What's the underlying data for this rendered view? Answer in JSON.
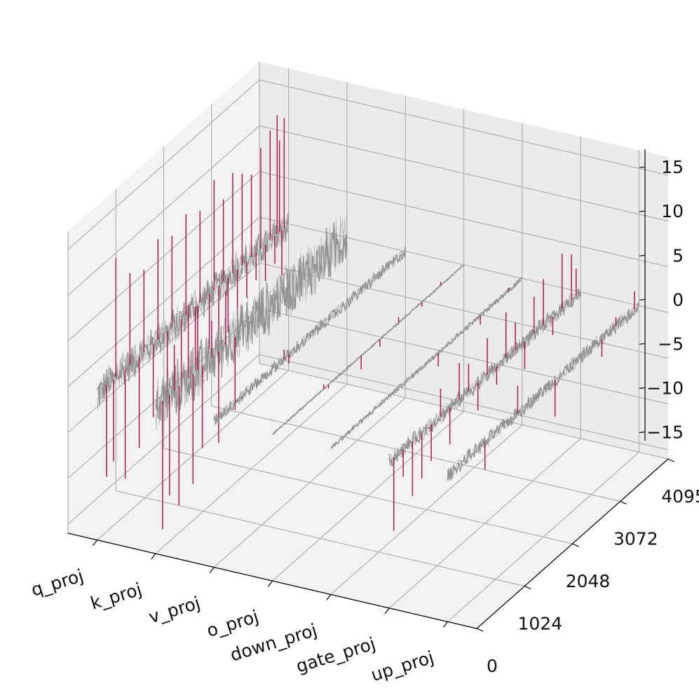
{
  "chart_data": {
    "type": "3d-line-spikes",
    "title": "",
    "xlabel": "",
    "ylabel": "",
    "zlabel": "",
    "categories": [
      "q_proj",
      "k_proj",
      "v_proj",
      "o_proj",
      "down_proj",
      "gate_proj",
      "up_proj"
    ],
    "y_ticks": [
      0,
      1024,
      2048,
      3072,
      4095
    ],
    "z_ticks": [
      15,
      10,
      5,
      0,
      -5,
      -10,
      -15
    ],
    "z_tick_labels": [
      "15",
      "10",
      "5",
      "0",
      "−5",
      "−10",
      "−15"
    ],
    "ylim": [
      0,
      4095
    ],
    "zlim": [
      -16,
      17
    ],
    "grid": true,
    "colors": {
      "baseline": "#8c8c8c",
      "outlier": "#b0194a",
      "grid": "#b0b0b0",
      "pane": "#f2f2f2"
    },
    "series": [
      {
        "category": "q_proj",
        "spread": 2.2,
        "outliers": [
          [
            200,
            -10
          ],
          [
            350,
            -9
          ],
          [
            600,
            -12
          ],
          [
            900,
            -10
          ],
          [
            1200,
            -8
          ],
          [
            1500,
            -7
          ],
          [
            1800,
            -8
          ],
          [
            2100,
            -7
          ],
          [
            2400,
            -6
          ],
          [
            2600,
            -7
          ],
          [
            2800,
            -6
          ],
          [
            3000,
            -5
          ],
          [
            3200,
            -4
          ],
          [
            3400,
            -3
          ],
          [
            3600,
            -4
          ],
          [
            3800,
            -3
          ],
          [
            3950,
            -5
          ],
          [
            400,
            13
          ],
          [
            700,
            10
          ],
          [
            1000,
            9
          ],
          [
            1300,
            11
          ],
          [
            1600,
            10
          ],
          [
            1900,
            11
          ],
          [
            2200,
            10
          ],
          [
            2500,
            12
          ],
          [
            2700,
            9
          ],
          [
            2900,
            11
          ],
          [
            3100,
            10
          ],
          [
            3300,
            9
          ],
          [
            3500,
            11
          ],
          [
            3700,
            12
          ],
          [
            3850,
            13
          ],
          [
            4000,
            12
          ],
          [
            3900,
            10
          ]
        ]
      },
      {
        "category": "k_proj",
        "spread": 3.5,
        "outliers": [
          [
            150,
            -14
          ],
          [
            300,
            -11
          ],
          [
            500,
            -13
          ],
          [
            800,
            -12
          ],
          [
            1000,
            -9
          ],
          [
            1200,
            4
          ],
          [
            1350,
            -10
          ],
          [
            1500,
            6
          ],
          [
            1700,
            -8
          ],
          [
            900,
            7
          ],
          [
            700,
            8
          ],
          [
            400,
            5
          ]
        ]
      },
      {
        "category": "v_proj",
        "spread": 0.8,
        "outliers": [
          [
            1500,
            1
          ],
          [
            1600,
            -1
          ]
        ]
      },
      {
        "category": "o_proj",
        "spread": 0.15,
        "outliers": [
          [
            1100,
            0.5
          ],
          [
            1200,
            -0.4
          ],
          [
            1900,
            -1.5
          ],
          [
            2300,
            -0.8
          ],
          [
            2700,
            0.6
          ],
          [
            3200,
            -0.5
          ],
          [
            3600,
            0.4
          ]
        ]
      },
      {
        "category": "down_proj",
        "spread": 0.35,
        "outliers": [
          [
            2300,
            -1.5
          ],
          [
            3200,
            -1.0
          ],
          [
            3800,
            0.3
          ]
        ]
      },
      {
        "category": "gate_proj",
        "spread": 1.0,
        "outliers": [
          [
            100,
            -8
          ],
          [
            300,
            -3
          ],
          [
            500,
            -6
          ],
          [
            700,
            -5
          ],
          [
            900,
            -4
          ],
          [
            1100,
            3
          ],
          [
            1300,
            -4
          ],
          [
            1500,
            4
          ],
          [
            1700,
            3
          ],
          [
            1900,
            -3
          ],
          [
            2100,
            4
          ],
          [
            2300,
            -2
          ],
          [
            2500,
            5
          ],
          [
            2700,
            3
          ],
          [
            2900,
            -3
          ],
          [
            3100,
            4
          ],
          [
            3300,
            5
          ],
          [
            3500,
            -2
          ],
          [
            3700,
            6
          ],
          [
            3900,
            5
          ],
          [
            4000,
            3
          ]
        ]
      },
      {
        "category": "up_proj",
        "spread": 0.9,
        "outliers": [
          [
            800,
            -3
          ],
          [
            1500,
            3
          ],
          [
            2300,
            -4
          ],
          [
            3300,
            -2
          ],
          [
            3600,
            1
          ],
          [
            4000,
            2
          ]
        ]
      }
    ]
  }
}
